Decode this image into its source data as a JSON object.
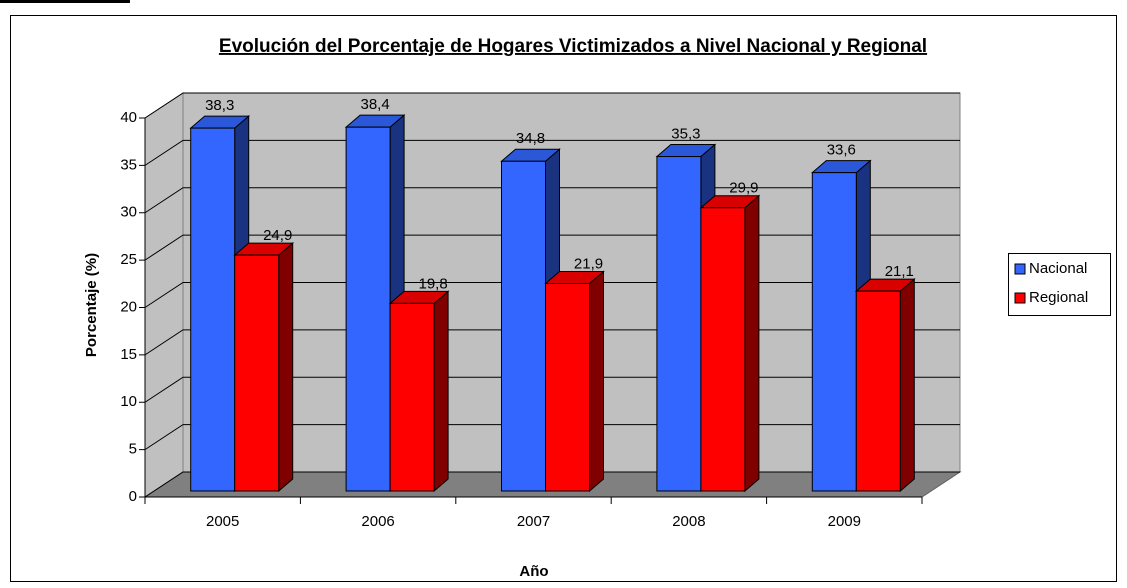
{
  "chart_data": {
    "type": "bar3d",
    "title": "Evolución del Porcentaje de Hogares Victimizados a Nivel Nacional y Regional",
    "xlabel": "Año",
    "ylabel": "Porcentaje (%)",
    "categories": [
      "2005",
      "2006",
      "2007",
      "2008",
      "2009"
    ],
    "series": [
      {
        "name": "Nacional",
        "color": "#3366ff",
        "values": [
          38.3,
          38.4,
          34.8,
          35.3,
          33.6
        ],
        "value_labels": [
          "38,3",
          "38,4",
          "34,8",
          "35,3",
          "33,6"
        ]
      },
      {
        "name": "Regional",
        "color": "#ff0000",
        "values": [
          24.9,
          19.8,
          21.9,
          29.9,
          21.1
        ],
        "value_labels": [
          "24,9",
          "19,8",
          "21,9",
          "29,9",
          "21,1"
        ]
      }
    ],
    "ylim": [
      0,
      40
    ],
    "yticks": [
      0,
      5,
      10,
      15,
      20,
      25,
      30,
      35,
      40
    ],
    "grid": true,
    "legend": "right"
  }
}
